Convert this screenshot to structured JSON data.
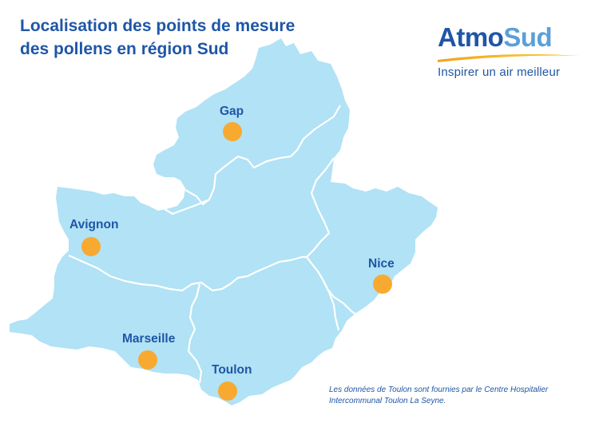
{
  "title": {
    "line1": "Localisation des points de mesure",
    "line2": "des pollens en région Sud"
  },
  "logo": {
    "word_part1": "Atmo",
    "word_part2": "Sud",
    "tagline": "Inspirer un air meilleur"
  },
  "map": {
    "region_color": "#b1e2f5",
    "border_color": "#ffffff",
    "marker_color": "#f8a930",
    "stations": [
      {
        "name": "Gap"
      },
      {
        "name": "Avignon"
      },
      {
        "name": "Nice"
      },
      {
        "name": "Marseille"
      },
      {
        "name": "Toulon"
      }
    ]
  },
  "footnote": {
    "line1": "Les données de Toulon sont fournies par le Centre Hospitalier",
    "line2": "Intercommunal Toulon La Seyne."
  }
}
